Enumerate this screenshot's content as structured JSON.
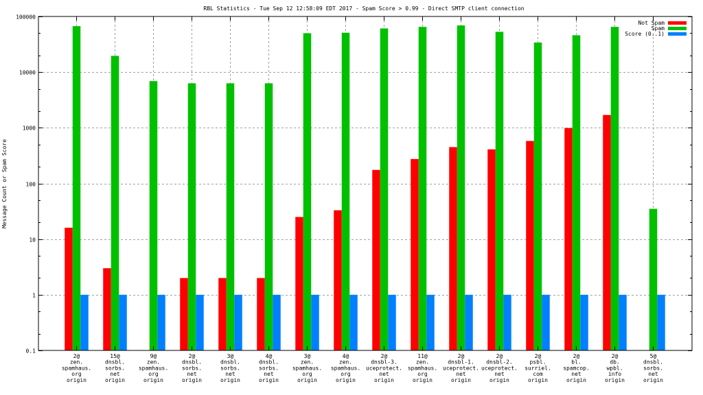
{
  "chart_data": {
    "type": "bar",
    "title": "RBL Statistics - Tue Sep 12 12:58:09 EDT 2017 - Spam Score > 0.99 - Direct SMTP client connection",
    "xlabel": "",
    "ylabel": "Message Count or Spam Score",
    "yscale": "log",
    "ylim": [
      0.1,
      100000
    ],
    "yticks": [
      "0.1",
      "1",
      "10",
      "100",
      "1000",
      "10000",
      "100000"
    ],
    "grid": true,
    "legend_position": "top-right",
    "categories": [
      [
        "2@",
        "zen.",
        "spamhaus.",
        "org",
        "origin"
      ],
      [
        "15@",
        "dnsbl.",
        "sorbs.",
        "net",
        "origin"
      ],
      [
        "9@",
        "zen.",
        "spamhaus.",
        "org",
        "origin"
      ],
      [
        "2@",
        "dnsbl.",
        "sorbs.",
        "net",
        "origin"
      ],
      [
        "3@",
        "dnsbl.",
        "sorbs.",
        "net",
        "origin"
      ],
      [
        "4@",
        "dnsbl.",
        "sorbs.",
        "net",
        "origin"
      ],
      [
        "3@",
        "zen.",
        "spamhaus.",
        "org",
        "origin"
      ],
      [
        "4@",
        "zen.",
        "spamhaus.",
        "org",
        "origin"
      ],
      [
        "2@",
        "dnsbl-3.",
        "uceprotect.",
        "net",
        "origin"
      ],
      [
        "11@",
        "zen.",
        "spamhaus.",
        "org",
        "origin"
      ],
      [
        "2@",
        "dnsbl-1.",
        "uceprotect.",
        "net",
        "origin"
      ],
      [
        "2@",
        "dnsbl-2.",
        "uceprotect.",
        "net",
        "origin"
      ],
      [
        "2@",
        "psbl.",
        "surriel.",
        "com",
        "origin"
      ],
      [
        "2@",
        "bl.",
        "spamcop.",
        "net",
        "origin"
      ],
      [
        "2@",
        "db.",
        "wpbl.",
        "info",
        "origin"
      ],
      [
        "5@",
        "dnsbl.",
        "sorbs.",
        "net",
        "origin"
      ]
    ],
    "series": [
      {
        "name": "Not Spam",
        "color": "#ff0000",
        "values": [
          16,
          3,
          null,
          2,
          2,
          2,
          25,
          33,
          175,
          275,
          450,
          410,
          580,
          990,
          1700,
          null
        ]
      },
      {
        "name": "Spam",
        "color": "#00c000",
        "values": [
          67000,
          19600,
          6900,
          6300,
          6300,
          6300,
          50000,
          51000,
          61000,
          65000,
          69000,
          53000,
          34000,
          46000,
          65000,
          35
        ]
      },
      {
        "name": "Score (0..1)",
        "color": "#0080ff",
        "values": [
          1,
          1,
          1,
          1,
          1,
          1,
          1,
          1,
          1,
          1,
          1,
          1,
          1,
          1,
          1,
          1
        ]
      }
    ]
  }
}
